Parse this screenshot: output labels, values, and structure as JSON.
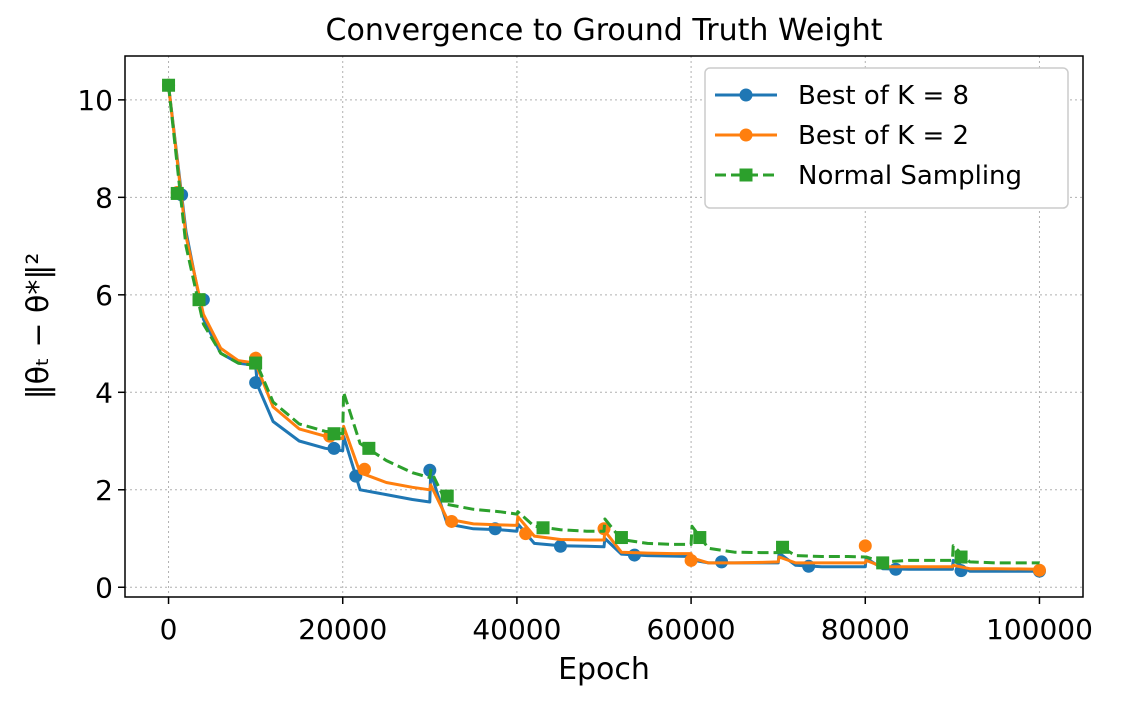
{
  "chart_data": {
    "type": "line",
    "title": "Convergence to Ground Truth Weight",
    "xlabel": "Epoch",
    "ylabel": "‖θₜ − θ*‖²",
    "xlim": [
      -5000,
      105000
    ],
    "ylim": [
      -0.2,
      10.9
    ],
    "xticks": [
      0,
      20000,
      40000,
      60000,
      80000,
      100000
    ],
    "xtick_labels": [
      "0",
      "20000",
      "40000",
      "60000",
      "80000",
      "100000"
    ],
    "yticks": [
      0,
      2,
      4,
      6,
      8,
      10
    ],
    "ytick_labels": [
      "0",
      "2",
      "4",
      "6",
      "8",
      "10"
    ],
    "grid": true,
    "legend_position": "top-right",
    "series": [
      {
        "name": "Best of K = 8",
        "color": "#1f77b4",
        "linestyle": "solid",
        "marker": "circle",
        "x": [
          0,
          2000,
          4000,
          6000,
          8000,
          10000,
          10200,
          12000,
          15000,
          18000,
          20000,
          20100,
          22000,
          25000,
          28000,
          30000,
          30100,
          32000,
          35000,
          38000,
          40000,
          40100,
          42000,
          45000,
          48000,
          50000,
          50100,
          52000,
          55000,
          58000,
          60000,
          60100,
          62000,
          65000,
          68000,
          70000,
          70100,
          72000,
          75000,
          78000,
          80000,
          80100,
          82000,
          85000,
          88000,
          90000,
          90100,
          92000,
          95000,
          100000
        ],
        "y": [
          10.3,
          7.3,
          5.5,
          4.8,
          4.6,
          4.55,
          4.15,
          3.4,
          3.0,
          2.85,
          2.8,
          3.1,
          2.0,
          1.9,
          1.8,
          1.75,
          2.35,
          1.3,
          1.2,
          1.18,
          1.15,
          1.3,
          0.9,
          0.85,
          0.84,
          0.83,
          1.0,
          0.68,
          0.65,
          0.64,
          0.63,
          0.56,
          0.5,
          0.5,
          0.5,
          0.5,
          0.7,
          0.45,
          0.42,
          0.42,
          0.42,
          0.6,
          0.38,
          0.37,
          0.37,
          0.37,
          0.55,
          0.33,
          0.33,
          0.33
        ],
        "marker_x": [
          0,
          1500,
          4000,
          10000,
          19000,
          21500,
          30000,
          37500,
          45000,
          53500,
          63500,
          73500,
          83500,
          91000,
          100000
        ],
        "marker_y": [
          10.3,
          8.05,
          5.9,
          4.2,
          2.85,
          2.28,
          2.4,
          1.2,
          0.84,
          0.66,
          0.52,
          0.43,
          0.37,
          0.34,
          0.33
        ]
      },
      {
        "name": "Best of K = 2",
        "color": "#ff7f0e",
        "linestyle": "solid",
        "marker": "circle",
        "x": [
          0,
          2000,
          4000,
          6000,
          8000,
          10000,
          10200,
          12000,
          15000,
          18000,
          20000,
          20100,
          22000,
          25000,
          28000,
          30000,
          30100,
          32000,
          35000,
          38000,
          40000,
          40100,
          42000,
          45000,
          48000,
          50000,
          50100,
          52000,
          55000,
          58000,
          60000,
          60100,
          62000,
          65000,
          68000,
          70000,
          70100,
          72000,
          75000,
          78000,
          80000,
          80100,
          82000,
          85000,
          88000,
          90000,
          90100,
          92000,
          95000,
          100000
        ],
        "y": [
          10.3,
          7.2,
          5.6,
          4.9,
          4.65,
          4.6,
          4.5,
          3.7,
          3.25,
          3.1,
          3.05,
          3.3,
          2.35,
          2.15,
          2.05,
          2.0,
          2.1,
          1.4,
          1.3,
          1.28,
          1.27,
          1.45,
          1.05,
          0.98,
          0.97,
          0.97,
          1.15,
          0.72,
          0.7,
          0.69,
          0.69,
          0.6,
          0.5,
          0.5,
          0.51,
          0.52,
          0.62,
          0.5,
          0.5,
          0.5,
          0.5,
          0.55,
          0.42,
          0.42,
          0.42,
          0.42,
          0.45,
          0.38,
          0.38,
          0.37
        ],
        "marker_x": [
          0,
          1000,
          3500,
          10000,
          18500,
          22500,
          32500,
          41000,
          50000,
          60000,
          80000,
          100000
        ],
        "marker_y": [
          10.3,
          8.1,
          5.9,
          4.7,
          3.1,
          2.42,
          1.35,
          1.1,
          1.2,
          0.55,
          0.85,
          0.35
        ]
      },
      {
        "name": "Normal Sampling",
        "color": "#2ca02c",
        "linestyle": "dashed",
        "marker": "square",
        "x": [
          0,
          2000,
          4000,
          6000,
          8000,
          10000,
          10100,
          12000,
          15000,
          18000,
          20000,
          20100,
          22000,
          25000,
          28000,
          30000,
          30100,
          32000,
          35000,
          38000,
          40000,
          40100,
          42000,
          45000,
          48000,
          50000,
          50100,
          52000,
          55000,
          58000,
          60000,
          60100,
          62000,
          65000,
          68000,
          70000,
          70100,
          72000,
          75000,
          78000,
          80000,
          80100,
          82000,
          85000,
          88000,
          90000,
          90100,
          92000,
          95000,
          100000
        ],
        "y": [
          10.3,
          7.0,
          5.4,
          4.8,
          4.6,
          4.55,
          4.6,
          3.8,
          3.35,
          3.2,
          3.15,
          4.0,
          2.95,
          2.6,
          2.35,
          2.25,
          2.4,
          1.7,
          1.6,
          1.55,
          1.5,
          1.55,
          1.25,
          1.18,
          1.15,
          1.15,
          1.4,
          0.98,
          0.9,
          0.88,
          0.88,
          1.25,
          0.8,
          0.72,
          0.71,
          0.71,
          0.85,
          0.65,
          0.63,
          0.63,
          0.62,
          0.62,
          0.52,
          0.55,
          0.55,
          0.55,
          0.85,
          0.52,
          0.5,
          0.5
        ],
        "marker_x": [
          0,
          1000,
          3500,
          10000,
          19000,
          23000,
          32000,
          43000,
          52000,
          61000,
          70500,
          82000,
          91000
        ],
        "marker_y": [
          10.3,
          8.08,
          5.9,
          4.6,
          3.15,
          2.85,
          1.87,
          1.22,
          1.02,
          1.02,
          0.82,
          0.5,
          0.62
        ]
      }
    ]
  }
}
